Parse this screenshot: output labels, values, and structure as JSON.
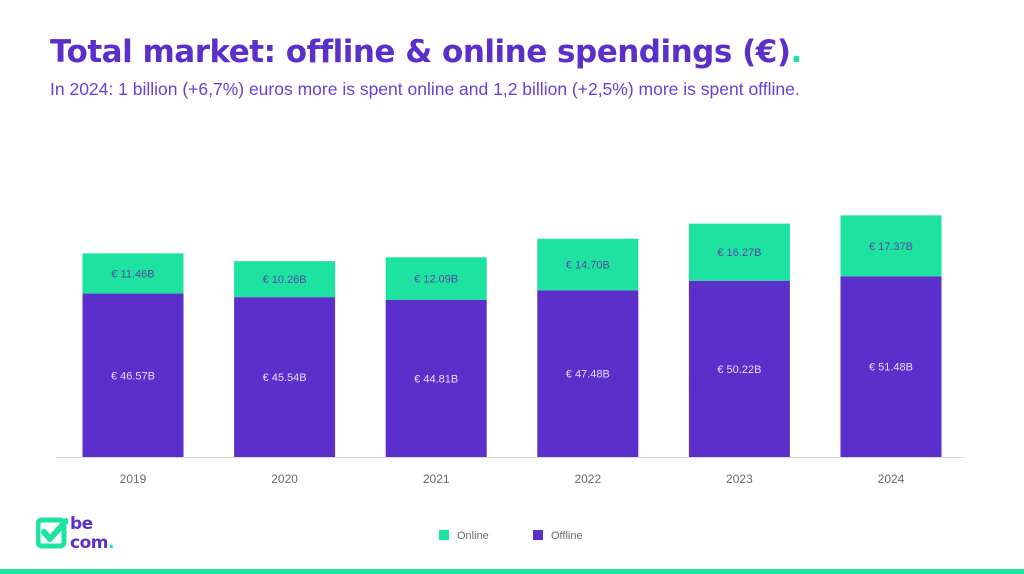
{
  "header": {
    "title": "Total market: offline & online spendings (€)",
    "title_dot": ".",
    "subtitle": "In 2024: 1 billion (+6,7%) euros more is spent online and 1,2 billion (+2,5%) more is spent offline."
  },
  "brand": {
    "line1": "be",
    "line2": "com",
    "dot": "."
  },
  "chart_data": {
    "type": "bar",
    "stacked": true,
    "title": "Total market: offline & online spendings (€)",
    "xlabel": "",
    "ylabel": "",
    "ylim": [
      0,
      70
    ],
    "grid": false,
    "legend_position": "bottom",
    "categories": [
      "2019",
      "2020",
      "2021",
      "2022",
      "2023",
      "2024"
    ],
    "series": [
      {
        "name": "Offline",
        "color": "#5b2fc9",
        "values": [
          46.57,
          45.54,
          44.81,
          47.48,
          50.22,
          51.48
        ],
        "labels": [
          "€ 46.57B",
          "€ 45.54B",
          "€ 44.81B",
          "€ 47.48B",
          "€ 50.22B",
          "€ 51.48B"
        ]
      },
      {
        "name": "Online",
        "color": "#1ee3a0",
        "values": [
          11.46,
          10.26,
          12.09,
          14.7,
          16.27,
          17.37
        ],
        "labels": [
          "€ 11.46B",
          "€ 10.26B",
          "€ 12.09B",
          "€ 14.70B",
          "€ 16.27B",
          "€ 17.37B"
        ]
      }
    ],
    "legend": [
      "Online",
      "Offline"
    ]
  }
}
